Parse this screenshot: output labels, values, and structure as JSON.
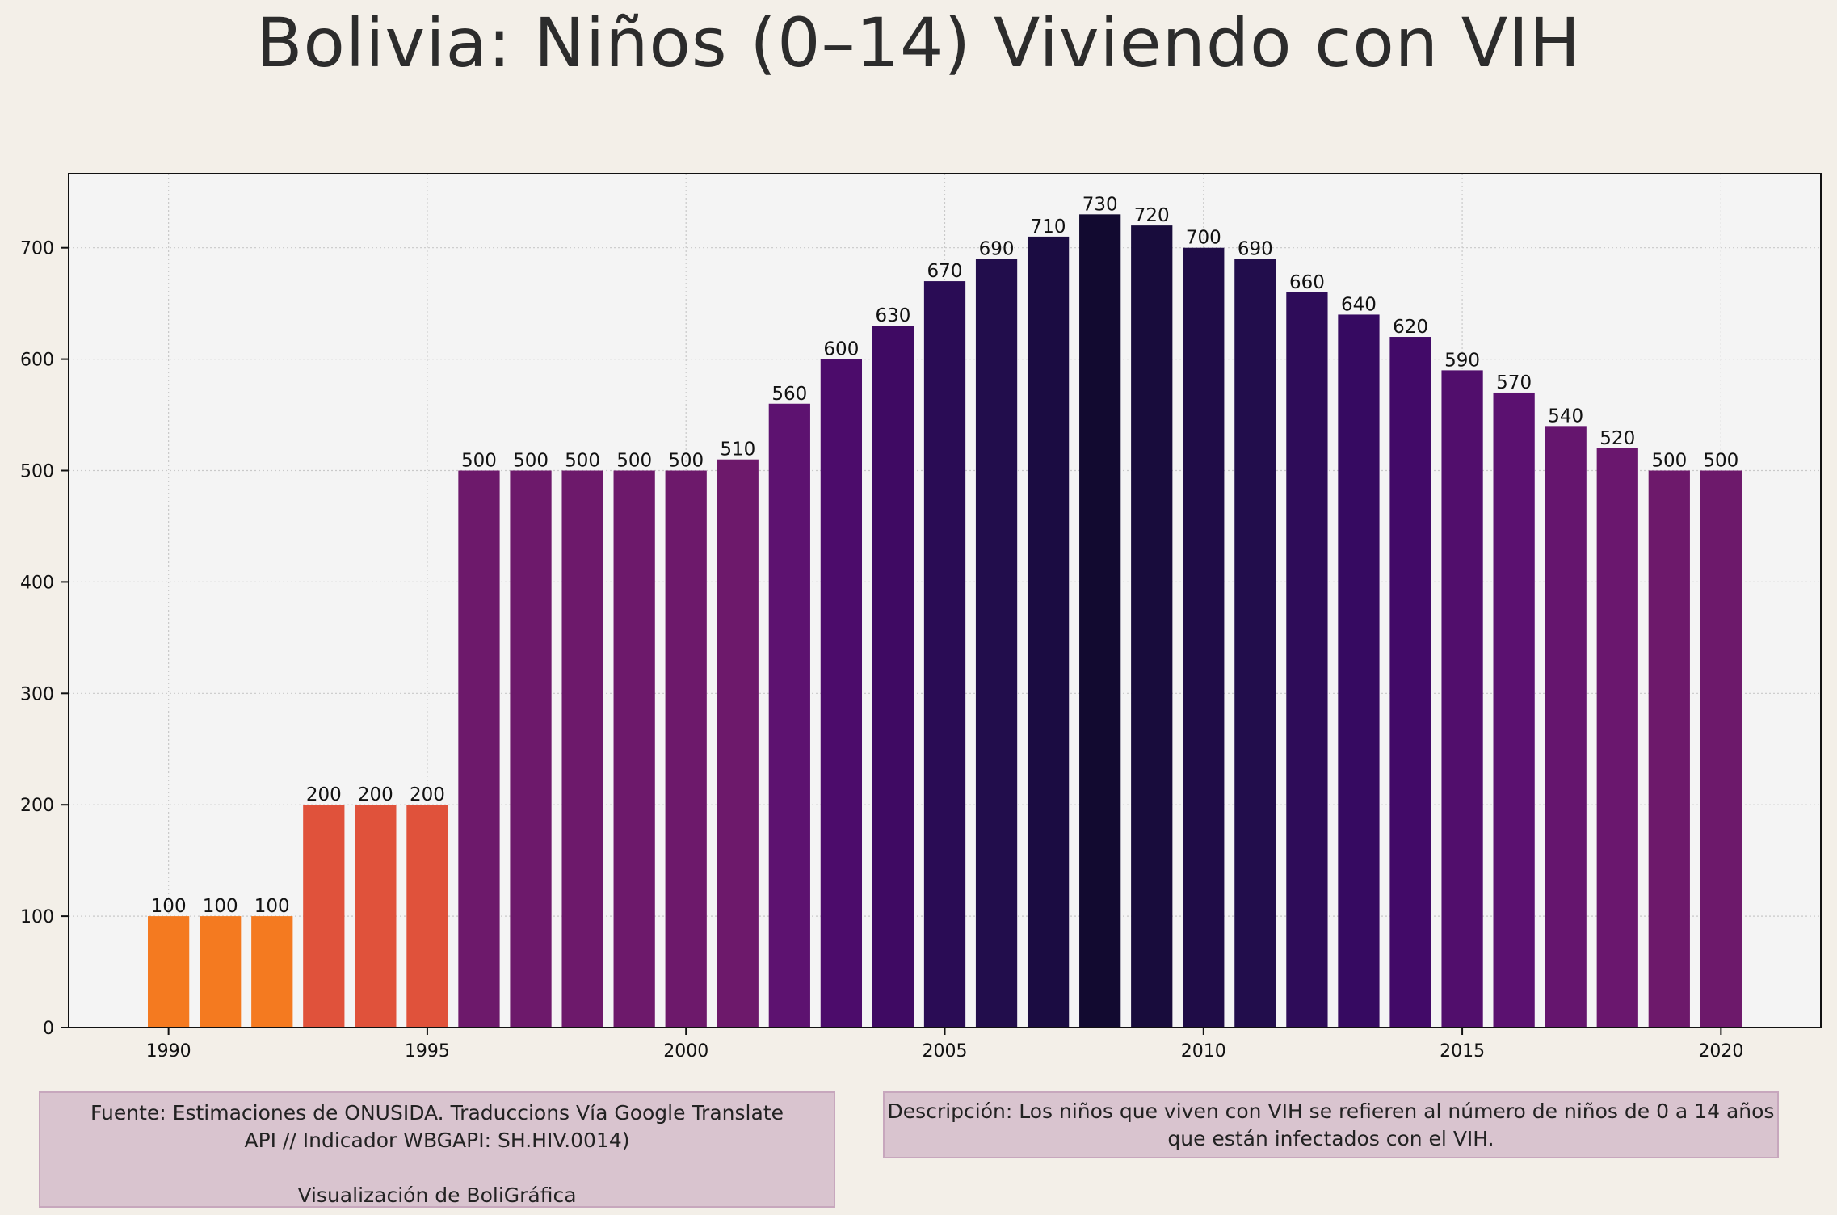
{
  "title": "Bolivia:  Niños (0–14) Viviendo con VIH",
  "source_note": "Fuente: Estimaciones de ONUSIDA. Traduccions Vía Google Translate\nAPI // Indicador WBGAPI: SH.HIV.0014)\n\nVisualización de BoliGráfica",
  "description_note": "Descripción: Los niños que viven con VIH se refieren al número de niños de 0 a 14 años\nque están infectados con el VIH.",
  "colors": {
    "background": "#f3efe8",
    "plot_background": "#f4f4f4",
    "note_background": "#d9c4cf",
    "value_100": "#f47a20",
    "value_200": "#e0523b",
    "value_500": "#6d196b",
    "value_510": "#6d196b",
    "value_520": "#6a176e",
    "value_540": "#65156e",
    "value_560": "#5d1270",
    "value_570": "#5b1170",
    "value_590": "#510e6c",
    "value_600": "#4c0c6b",
    "value_620": "#420a68",
    "value_630": "#3f0a63",
    "value_640": "#360a61",
    "value_660": "#2e0c59",
    "value_670": "#2a0c55",
    "value_690": "#220d4c",
    "value_700": "#1f0c47",
    "value_710": "#1b0c42",
    "value_720": "#180c3c",
    "value_730": "#120a30"
  },
  "chart_data": {
    "type": "bar",
    "title": "Bolivia:  Niños (0–14) Viviendo con VIH",
    "xlabel": "",
    "ylabel": "",
    "x": [
      1990,
      1991,
      1992,
      1993,
      1994,
      1995,
      1996,
      1997,
      1998,
      1999,
      2000,
      2001,
      2002,
      2003,
      2004,
      2005,
      2006,
      2007,
      2008,
      2009,
      2010,
      2011,
      2012,
      2013,
      2014,
      2015,
      2016,
      2017,
      2018,
      2019,
      2020
    ],
    "values": [
      100,
      100,
      100,
      200,
      200,
      200,
      500,
      500,
      500,
      500,
      500,
      510,
      560,
      600,
      630,
      670,
      690,
      710,
      730,
      720,
      700,
      690,
      660,
      640,
      620,
      590,
      570,
      540,
      520,
      500,
      500
    ],
    "xlim": [
      1988.7,
      1992.0
    ],
    "x_range": [
      1988.07,
      2021.93
    ],
    "ylim": [
      0,
      766.5
    ],
    "x_ticks": [
      1990,
      1995,
      2000,
      2005,
      2010,
      2015,
      2020
    ],
    "y_ticks": [
      0,
      100,
      200,
      300,
      400,
      500,
      600,
      700
    ],
    "grid": true,
    "grid_style": "dotted",
    "legend": "none",
    "data_labels": true
  }
}
